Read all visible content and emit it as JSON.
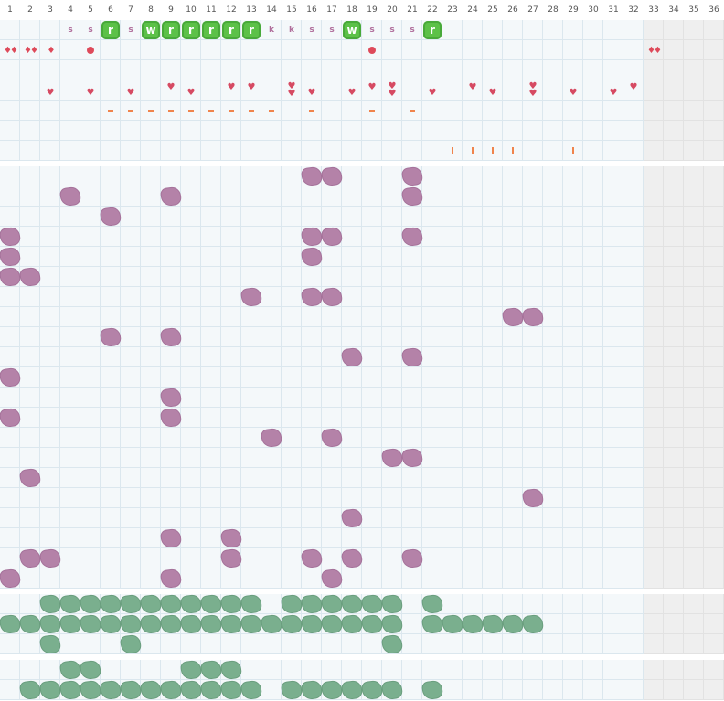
{
  "board": {
    "columns": [
      "1",
      "2",
      "3",
      "4",
      "5",
      "6",
      "7",
      "8",
      "9",
      "10",
      "11",
      "12",
      "13",
      "14",
      "15",
      "16",
      "17",
      "18",
      "19",
      "20",
      "21",
      "22",
      "23",
      "24",
      "25",
      "26",
      "27",
      "28",
      "29",
      "30",
      "31",
      "32",
      "33",
      "34",
      "35",
      "36"
    ],
    "shaded_columns_from": 33
  },
  "colors": {
    "grid_bg": "#f4f8fa",
    "grid_line": "#dbe7ee",
    "shade_bg": "#efefef",
    "badge_green": "#5cc148",
    "letter_mauve": "#b06e9b",
    "heart_red": "#d64a62",
    "dash_orange": "#f0844c",
    "blob_purple": "#b482a8",
    "blob_green": "#7aaf8e"
  },
  "sections": [
    {
      "name": "header-section",
      "rows": [
        {
          "name": "symbol-row",
          "marks": [
            {
              "col": 4,
              "kind": "letter",
              "text": "s"
            },
            {
              "col": 5,
              "kind": "letter",
              "text": "s"
            },
            {
              "col": 6,
              "kind": "badge",
              "text": "r"
            },
            {
              "col": 7,
              "kind": "letter",
              "text": "s"
            },
            {
              "col": 8,
              "kind": "badge",
              "text": "w"
            },
            {
              "col": 9,
              "kind": "badge",
              "text": "r"
            },
            {
              "col": 10,
              "kind": "badge",
              "text": "r"
            },
            {
              "col": 11,
              "kind": "badge",
              "text": "r"
            },
            {
              "col": 12,
              "kind": "badge",
              "text": "r"
            },
            {
              "col": 13,
              "kind": "badge",
              "text": "r"
            },
            {
              "col": 14,
              "kind": "letter",
              "text": "k"
            },
            {
              "col": 15,
              "kind": "letter",
              "text": "k"
            },
            {
              "col": 16,
              "kind": "letter",
              "text": "s"
            },
            {
              "col": 17,
              "kind": "letter",
              "text": "s"
            },
            {
              "col": 18,
              "kind": "badge",
              "text": "w"
            },
            {
              "col": 19,
              "kind": "letter",
              "text": "s"
            },
            {
              "col": 20,
              "kind": "letter",
              "text": "s"
            },
            {
              "col": 21,
              "kind": "letter",
              "text": "s"
            },
            {
              "col": 22,
              "kind": "badge",
              "text": "r"
            }
          ]
        },
        {
          "name": "drop-row",
          "marks": [
            {
              "col": 1,
              "kind": "drops",
              "text": "♦♦"
            },
            {
              "col": 2,
              "kind": "drops",
              "text": "♦♦"
            },
            {
              "col": 3,
              "kind": "drops",
              "text": "♦"
            },
            {
              "col": 5,
              "kind": "dot"
            },
            {
              "col": 19,
              "kind": "dot"
            },
            {
              "col": 33,
              "kind": "drops",
              "text": "♦♦"
            }
          ]
        },
        {
          "name": "empty-row",
          "marks": []
        },
        {
          "name": "heart-row",
          "marks": [
            {
              "col": 3,
              "kind": "heart",
              "count": 1,
              "pos": "low"
            },
            {
              "col": 5,
              "kind": "heart",
              "count": 1,
              "pos": "low"
            },
            {
              "col": 7,
              "kind": "heart",
              "count": 1,
              "pos": "low"
            },
            {
              "col": 9,
              "kind": "heart",
              "count": 1,
              "pos": "high"
            },
            {
              "col": 10,
              "kind": "heart",
              "count": 1,
              "pos": "low"
            },
            {
              "col": 12,
              "kind": "heart",
              "count": 1,
              "pos": "high"
            },
            {
              "col": 13,
              "kind": "heart",
              "count": 1,
              "pos": "high"
            },
            {
              "col": 15,
              "kind": "heart",
              "count": 2,
              "pos": "mid"
            },
            {
              "col": 16,
              "kind": "heart",
              "count": 1,
              "pos": "low"
            },
            {
              "col": 18,
              "kind": "heart",
              "count": 1,
              "pos": "low"
            },
            {
              "col": 19,
              "kind": "heart",
              "count": 1,
              "pos": "high"
            },
            {
              "col": 20,
              "kind": "heart",
              "count": 2,
              "pos": "mid"
            },
            {
              "col": 22,
              "kind": "heart",
              "count": 1,
              "pos": "low"
            },
            {
              "col": 24,
              "kind": "heart",
              "count": 1,
              "pos": "high"
            },
            {
              "col": 25,
              "kind": "heart",
              "count": 1,
              "pos": "low"
            },
            {
              "col": 27,
              "kind": "heart",
              "count": 2,
              "pos": "mid"
            },
            {
              "col": 29,
              "kind": "heart",
              "count": 1,
              "pos": "low"
            },
            {
              "col": 31,
              "kind": "heart",
              "count": 1,
              "pos": "low"
            },
            {
              "col": 32,
              "kind": "heart",
              "count": 1,
              "pos": "high"
            }
          ]
        },
        {
          "name": "dash-row",
          "marks": [
            {
              "col": 6,
              "kind": "dash"
            },
            {
              "col": 7,
              "kind": "dash"
            },
            {
              "col": 8,
              "kind": "dash"
            },
            {
              "col": 9,
              "kind": "dash"
            },
            {
              "col": 10,
              "kind": "dash"
            },
            {
              "col": 11,
              "kind": "dash"
            },
            {
              "col": 12,
              "kind": "dash"
            },
            {
              "col": 13,
              "kind": "dash"
            },
            {
              "col": 14,
              "kind": "dash"
            },
            {
              "col": 16,
              "kind": "dash"
            },
            {
              "col": 19,
              "kind": "dash"
            },
            {
              "col": 21,
              "kind": "dash"
            }
          ]
        },
        {
          "name": "empty-row",
          "marks": []
        },
        {
          "name": "tick-row",
          "marks": [
            {
              "col": 23,
              "kind": "tick"
            },
            {
              "col": 24,
              "kind": "tick"
            },
            {
              "col": 25,
              "kind": "tick"
            },
            {
              "col": 26,
              "kind": "tick"
            },
            {
              "col": 29,
              "kind": "tick"
            }
          ]
        }
      ]
    },
    {
      "name": "purple-section",
      "rows": [
        {
          "name": "purple-row",
          "cols": [
            16,
            17,
            21
          ]
        },
        {
          "name": "purple-row",
          "cols": [
            4,
            9,
            21
          ]
        },
        {
          "name": "purple-row",
          "cols": [
            6
          ]
        },
        {
          "name": "purple-row",
          "cols": [
            1,
            16,
            17,
            21
          ]
        },
        {
          "name": "purple-row",
          "cols": [
            1,
            16
          ]
        },
        {
          "name": "purple-row",
          "cols": [
            1,
            2
          ]
        },
        {
          "name": "purple-row",
          "cols": [
            13,
            16,
            17
          ]
        },
        {
          "name": "purple-row",
          "cols": [
            26,
            27
          ]
        },
        {
          "name": "purple-row",
          "cols": [
            6,
            9
          ]
        },
        {
          "name": "purple-row",
          "cols": [
            18,
            21
          ]
        },
        {
          "name": "purple-row",
          "cols": [
            1
          ]
        },
        {
          "name": "purple-row",
          "cols": [
            9
          ]
        },
        {
          "name": "purple-row",
          "cols": [
            1,
            9
          ]
        },
        {
          "name": "purple-row",
          "cols": [
            14,
            17
          ]
        },
        {
          "name": "purple-row",
          "cols": [
            20,
            21
          ]
        },
        {
          "name": "purple-row",
          "cols": [
            2
          ]
        },
        {
          "name": "purple-row",
          "cols": [
            27
          ]
        },
        {
          "name": "purple-row",
          "cols": [
            18
          ]
        },
        {
          "name": "purple-row",
          "cols": [
            9,
            12
          ]
        },
        {
          "name": "purple-row",
          "cols": [
            2,
            3,
            12,
            16,
            18,
            21
          ]
        },
        {
          "name": "purple-row",
          "cols": [
            1,
            9,
            17
          ]
        }
      ]
    },
    {
      "name": "green-section-a",
      "rows": [
        {
          "name": "green-row",
          "cols": [
            3,
            4,
            5,
            6,
            7,
            8,
            9,
            10,
            11,
            12,
            13,
            15,
            16,
            17,
            18,
            19,
            20,
            22
          ]
        },
        {
          "name": "green-row",
          "cols": [
            1,
            2,
            3,
            4,
            5,
            6,
            7,
            8,
            9,
            10,
            11,
            12,
            13,
            14,
            15,
            16,
            17,
            18,
            19,
            20,
            22,
            23,
            24,
            25,
            26,
            27
          ]
        },
        {
          "name": "green-row",
          "cols": [
            3,
            7,
            20
          ]
        }
      ]
    },
    {
      "name": "green-section-b",
      "rows": [
        {
          "name": "green-row",
          "cols": [
            4,
            5,
            10,
            11,
            12
          ]
        },
        {
          "name": "green-row",
          "cols": [
            2,
            3,
            4,
            5,
            6,
            7,
            8,
            9,
            10,
            11,
            12,
            13,
            15,
            16,
            17,
            18,
            19,
            20,
            22
          ]
        }
      ]
    }
  ]
}
